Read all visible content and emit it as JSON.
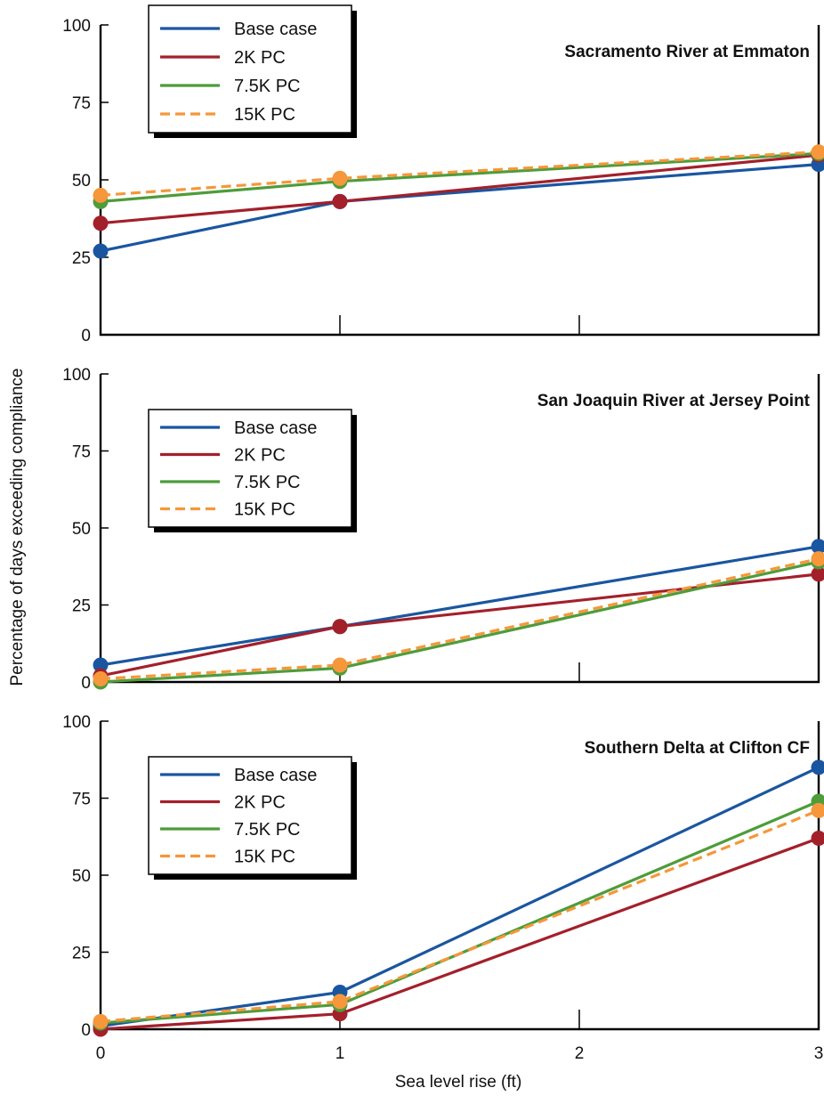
{
  "figure": {
    "ylabel": "Percentage of days exceeding compliance",
    "xlabel": "Sea level rise (ft)",
    "x_ticks": [
      "0",
      "1",
      "2",
      "3"
    ]
  },
  "colors": {
    "base": "#1a56a0",
    "pc2k": "#a3202b",
    "pc75k": "#4e9c3a",
    "pc15k": "#f5973a"
  },
  "chart_data": [
    {
      "type": "line",
      "title": "Sacramento River at Emmaton",
      "xlim": [
        0,
        3
      ],
      "ylim": [
        0,
        100
      ],
      "y_ticks": [
        "0",
        "25",
        "50",
        "75",
        "100"
      ],
      "legend_position": "top-left",
      "series": [
        {
          "name": "Base case",
          "color": "base",
          "dashed": false,
          "x": [
            0,
            1,
            3
          ],
          "y": [
            27,
            43,
            55
          ]
        },
        {
          "name": "2K PC",
          "color": "pc2k",
          "dashed": false,
          "x": [
            0,
            1,
            3
          ],
          "y": [
            36,
            43,
            58
          ]
        },
        {
          "name": "7.5K PC",
          "color": "pc75k",
          "dashed": false,
          "x": [
            0,
            1,
            3
          ],
          "y": [
            43,
            49.5,
            58.5
          ]
        },
        {
          "name": "15K PC",
          "color": "pc15k",
          "dashed": true,
          "x": [
            0,
            1,
            3
          ],
          "y": [
            45,
            50.5,
            59
          ]
        }
      ]
    },
    {
      "type": "line",
      "title": "San Joaquin River at Jersey Point",
      "xlim": [
        0,
        3
      ],
      "ylim": [
        0,
        100
      ],
      "y_ticks": [
        "0",
        "25",
        "50",
        "75",
        "100"
      ],
      "legend_position": "middle-left",
      "series": [
        {
          "name": "Base case",
          "color": "base",
          "dashed": false,
          "x": [
            0,
            1,
            3
          ],
          "y": [
            5.5,
            18,
            44
          ]
        },
        {
          "name": "2K PC",
          "color": "pc2k",
          "dashed": false,
          "x": [
            0,
            1,
            3
          ],
          "y": [
            2,
            18,
            35
          ]
        },
        {
          "name": "7.5K PC",
          "color": "pc75k",
          "dashed": false,
          "x": [
            0,
            1,
            3
          ],
          "y": [
            0,
            4.5,
            39
          ]
        },
        {
          "name": "15K PC",
          "color": "pc15k",
          "dashed": true,
          "x": [
            0,
            1,
            3
          ],
          "y": [
            1,
            5.5,
            40
          ]
        }
      ]
    },
    {
      "type": "line",
      "title": "Southern Delta at Clifton CF",
      "xlim": [
        0,
        3
      ],
      "ylim": [
        0,
        100
      ],
      "y_ticks": [
        "0",
        "25",
        "50",
        "75",
        "100"
      ],
      "legend_position": "middle-left",
      "series": [
        {
          "name": "Base case",
          "color": "base",
          "dashed": false,
          "x": [
            0,
            1,
            3
          ],
          "y": [
            1,
            12,
            85
          ]
        },
        {
          "name": "2K PC",
          "color": "pc2k",
          "dashed": false,
          "x": [
            0,
            1,
            3
          ],
          "y": [
            0,
            5,
            62
          ]
        },
        {
          "name": "7.5K PC",
          "color": "pc75k",
          "dashed": false,
          "x": [
            0,
            1,
            3
          ],
          "y": [
            2,
            8,
            74
          ]
        },
        {
          "name": "15K PC",
          "color": "pc15k",
          "dashed": true,
          "x": [
            0,
            1,
            3
          ],
          "y": [
            2.5,
            9,
            71
          ]
        }
      ]
    }
  ]
}
